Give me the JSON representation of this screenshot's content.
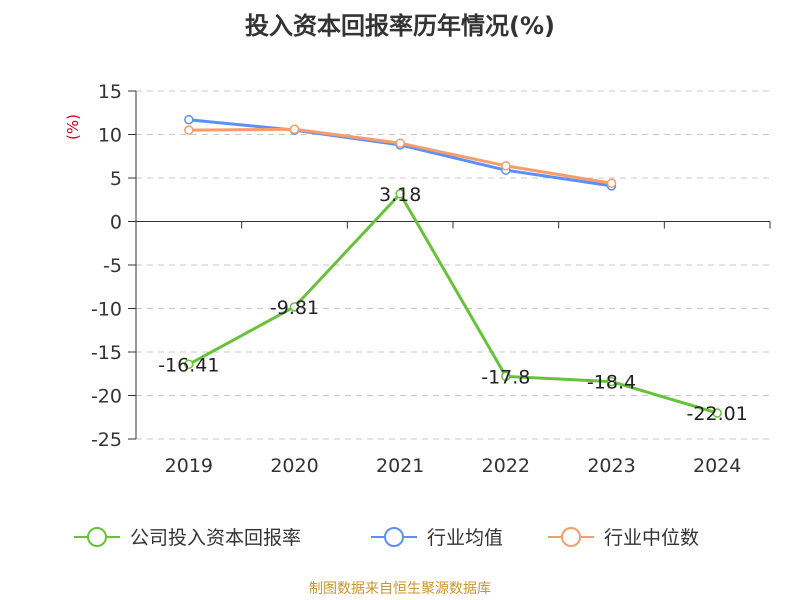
{
  "chart_data": {
    "type": "line",
    "title": "投入资本回报率历年情况(%)",
    "ylabel": "(%)",
    "xlabel": "",
    "categories": [
      "2019",
      "2020",
      "2021",
      "2022",
      "2023",
      "2024"
    ],
    "ylim": [
      -25,
      15
    ],
    "yticks": [
      15,
      10,
      5,
      0,
      -5,
      -10,
      -15,
      -20,
      -25
    ],
    "grid": true,
    "legend_position": "bottom",
    "series": [
      {
        "name": "公司投入资本回报率",
        "color": "#67c23a",
        "values": [
          -16.41,
          -9.81,
          3.18,
          -17.8,
          -18.4,
          -22.01
        ],
        "labels": [
          "-16.41",
          "-9.81",
          "3.18",
          "-17.8",
          "-18.4",
          "-22.01"
        ]
      },
      {
        "name": "行业均值",
        "color": "#5b8ff9",
        "values": [
          11.7,
          10.5,
          8.8,
          5.9,
          4.1,
          null
        ]
      },
      {
        "name": "行业中位数",
        "color": "#f79c6a",
        "values": [
          10.5,
          10.6,
          9.0,
          6.4,
          4.4,
          null
        ]
      }
    ]
  },
  "source": "制图数据来自恒生聚源数据库"
}
